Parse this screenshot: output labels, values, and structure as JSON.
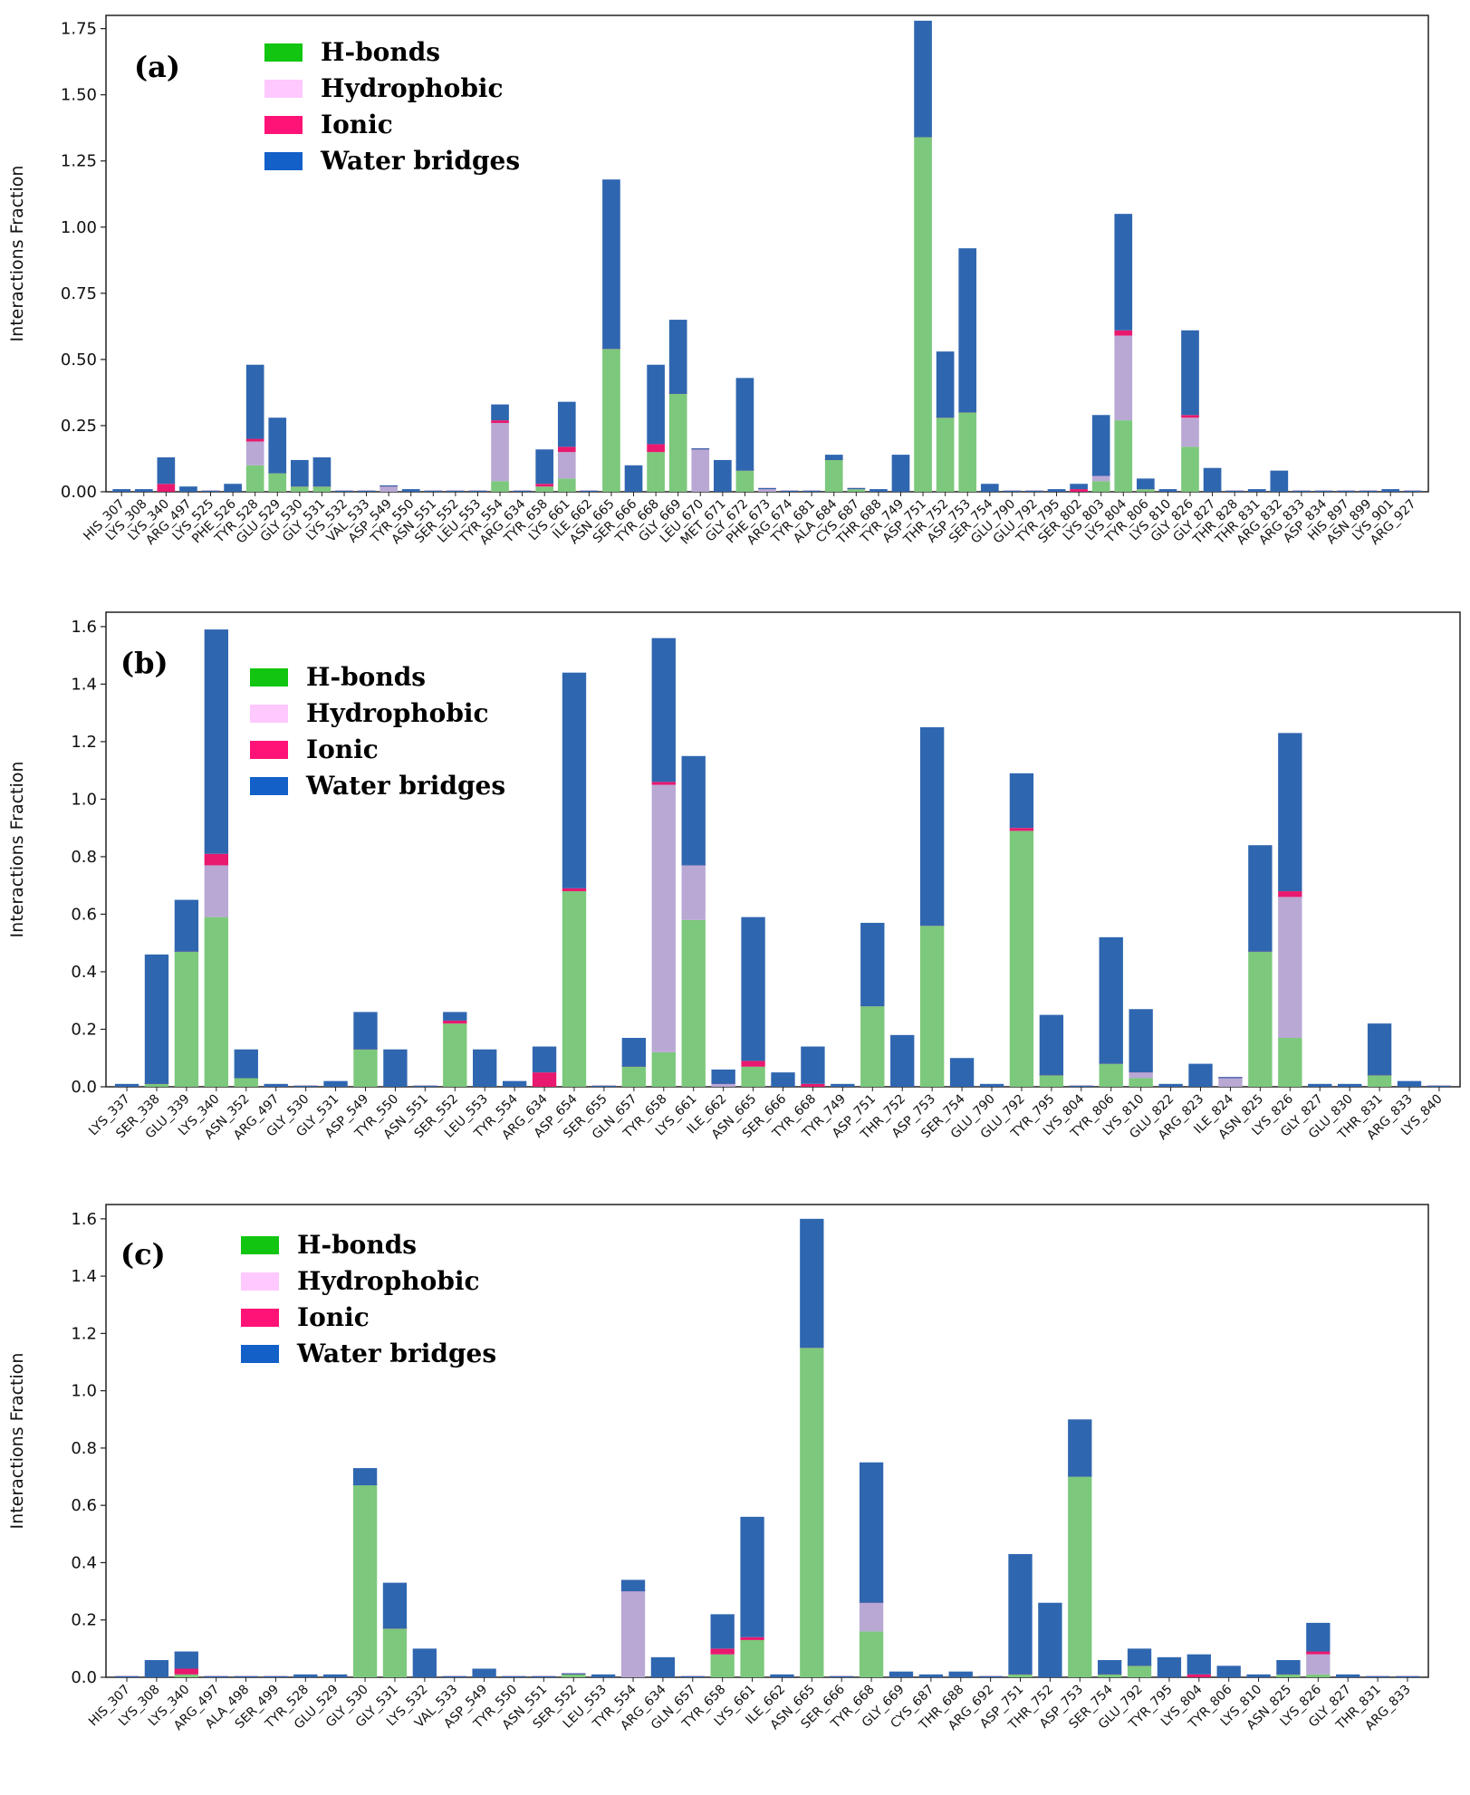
{
  "colors": {
    "hbonds": "#7cc87c",
    "hydrophobic": "#b9a8d4",
    "ionic": "#e8196e",
    "water": "#2f66b0",
    "legend_hbonds": "#11c511",
    "legend_hydrophobic": "#ffc8ff",
    "legend_ionic": "#ff1377",
    "legend_water": "#1260c8"
  },
  "chart_data": [
    {
      "type": "bar",
      "stacked": true,
      "panel_label": "(a)",
      "ylabel": "Interactions Fraction",
      "ylim": [
        0,
        1.8
      ],
      "yticks": [
        "0.00",
        "0.25",
        "0.50",
        "0.75",
        "1.00",
        "1.25",
        "1.50",
        "1.75"
      ],
      "ytick_values": [
        0,
        0.25,
        0.5,
        0.75,
        1.0,
        1.25,
        1.5,
        1.75
      ],
      "legend": [
        "H-bonds",
        "Hydrophobic",
        "Ionic",
        "Water bridges"
      ],
      "legend_position": "top-left",
      "categories": [
        "HIS_307",
        "LYS_308",
        "LYS_340",
        "ARG_497",
        "LYS_525",
        "PHE_526",
        "TYR_528",
        "GLU_529",
        "GLY_530",
        "GLY_531",
        "LYS_532",
        "VAL_533",
        "ASP_549",
        "TYR_550",
        "ASN_551",
        "SER_552",
        "LEU_553",
        "TYR_554",
        "ARG_634",
        "TYR_658",
        "LYS_661",
        "ILE_662",
        "ASN_665",
        "SER_666",
        "TYR_668",
        "GLY_669",
        "LEU_670",
        "MET_671",
        "GLY_672",
        "PHE_673",
        "ARG_674",
        "TYR_681",
        "ALA_684",
        "CYS_687",
        "THR_688",
        "TYR_749",
        "ASP_751",
        "THR_752",
        "ASP_753",
        "SER_754",
        "GLU_790",
        "GLU_792",
        "TYR_795",
        "SER_802",
        "LYS_803",
        "LYS_804",
        "TYR_806",
        "LYS_810",
        "GLY_826",
        "GLY_827",
        "THR_828",
        "THR_831",
        "ARG_832",
        "ARG_833",
        "ASP_834",
        "HIS_897",
        "ASN_899",
        "LYS_901",
        "ARG_927"
      ],
      "series": [
        {
          "name": "H-bonds",
          "values": [
            0,
            0,
            0,
            0,
            0,
            0,
            0.1,
            0.07,
            0.02,
            0.02,
            0,
            0,
            0,
            0,
            0,
            0,
            0,
            0.04,
            0,
            0.02,
            0.05,
            0,
            0.54,
            0,
            0.15,
            0.37,
            0,
            0,
            0.08,
            0,
            0,
            0,
            0.12,
            0.01,
            0,
            0,
            1.34,
            0.28,
            0.3,
            0,
            0,
            0,
            0,
            0,
            0.04,
            0.27,
            0.01,
            0,
            0.17,
            0,
            0,
            0,
            0,
            0,
            0,
            0,
            0,
            0,
            0
          ]
        },
        {
          "name": "Hydrophobic",
          "values": [
            0,
            0,
            0,
            0,
            0,
            0,
            0.09,
            0,
            0,
            0,
            0,
            0,
            0.02,
            0,
            0,
            0,
            0,
            0.22,
            0,
            0,
            0.1,
            0,
            0,
            0,
            0,
            0,
            0.16,
            0,
            0,
            0.01,
            0,
            0,
            0,
            0,
            0,
            0,
            0,
            0,
            0,
            0,
            0,
            0,
            0,
            0,
            0.02,
            0.32,
            0,
            0,
            0.11,
            0,
            0,
            0,
            0,
            0,
            0,
            0,
            0,
            0,
            0
          ]
        },
        {
          "name": "Ionic",
          "values": [
            0,
            0,
            0.03,
            0,
            0,
            0,
            0.01,
            0,
            0,
            0,
            0,
            0,
            0,
            0,
            0,
            0,
            0,
            0.01,
            0,
            0.01,
            0.02,
            0,
            0,
            0,
            0.03,
            0,
            0,
            0,
            0,
            0,
            0,
            0,
            0,
            0,
            0,
            0,
            0,
            0,
            0,
            0,
            0,
            0,
            0,
            0.01,
            0,
            0.02,
            0,
            0,
            0.01,
            0,
            0,
            0,
            0,
            0,
            0,
            0,
            0,
            0,
            0
          ]
        },
        {
          "name": "Water bridges",
          "values": [
            0.01,
            0.01,
            0.1,
            0.02,
            0,
            0.03,
            0.28,
            0.21,
            0.1,
            0.11,
            0,
            0,
            0,
            0.01,
            0,
            0,
            0,
            0.06,
            0,
            0.13,
            0.17,
            0,
            0.64,
            0.1,
            0.3,
            0.28,
            0,
            0.12,
            0.35,
            0,
            0,
            0,
            0.02,
            0,
            0.01,
            0.14,
            0.44,
            0.25,
            0.62,
            0.03,
            0,
            0,
            0.01,
            0.02,
            0.23,
            0.44,
            0.04,
            0.01,
            0.32,
            0.09,
            0,
            0.01,
            0.08,
            0,
            0,
            0,
            0,
            0.01,
            0
          ]
        }
      ]
    },
    {
      "type": "bar",
      "stacked": true,
      "panel_label": "(b)",
      "ylabel": "Interactions Fraction",
      "ylim": [
        0,
        1.65
      ],
      "yticks": [
        "0.0",
        "0.2",
        "0.4",
        "0.6",
        "0.8",
        "1.0",
        "1.2",
        "1.4",
        "1.6"
      ],
      "ytick_values": [
        0,
        0.2,
        0.4,
        0.6,
        0.8,
        1.0,
        1.2,
        1.4,
        1.6
      ],
      "legend": [
        "H-bonds",
        "Hydrophobic",
        "Ionic",
        "Water bridges"
      ],
      "legend_position": "top-left",
      "categories": [
        "LYS_337",
        "SER_338",
        "GLU_339",
        "LYS_340",
        "ASN_352",
        "ARG_497",
        "GLY_530",
        "GLY_531",
        "ASP_549",
        "TYR_550",
        "ASN_551",
        "SER_552",
        "LEU_553",
        "TYR_554",
        "ARG_634",
        "ASP_654",
        "SER_655",
        "GLN_657",
        "TYR_658",
        "LYS_661",
        "ILE_662",
        "ASN_665",
        "SER_666",
        "TYR_668",
        "TYR_749",
        "ASP_751",
        "THR_752",
        "ASP_753",
        "SER_754",
        "GLU_790",
        "GLU_792",
        "TYR_795",
        "LYS_804",
        "TYR_806",
        "LYS_810",
        "GLU_822",
        "ARG_823",
        "ILE_824",
        "ASN_825",
        "LYS_826",
        "GLY_827",
        "GLU_830",
        "THR_831",
        "ARG_833",
        "LYS_840"
      ],
      "series": [
        {
          "name": "H-bonds",
          "values": [
            0,
            0.01,
            0.47,
            0.59,
            0.03,
            0,
            0,
            0,
            0.13,
            0,
            0,
            0.22,
            0,
            0,
            0,
            0.68,
            0,
            0.07,
            0.12,
            0.58,
            0,
            0.07,
            0,
            0,
            0,
            0.28,
            0,
            0.56,
            0,
            0,
            0.89,
            0.04,
            0,
            0.08,
            0.03,
            0,
            0,
            0,
            0.47,
            0.17,
            0,
            0,
            0.04,
            0,
            0
          ]
        },
        {
          "name": "Hydrophobic",
          "values": [
            0,
            0,
            0,
            0.18,
            0,
            0,
            0,
            0,
            0,
            0,
            0,
            0,
            0,
            0,
            0,
            0,
            0,
            0,
            0.93,
            0.19,
            0.01,
            0,
            0,
            0,
            0,
            0,
            0,
            0,
            0,
            0,
            0,
            0,
            0,
            0,
            0.02,
            0,
            0,
            0.03,
            0,
            0.49,
            0,
            0,
            0,
            0,
            0
          ]
        },
        {
          "name": "Ionic",
          "values": [
            0,
            0,
            0,
            0.04,
            0,
            0,
            0,
            0,
            0,
            0,
            0,
            0.01,
            0,
            0,
            0.05,
            0.01,
            0,
            0,
            0.01,
            0,
            0,
            0.02,
            0,
            0.01,
            0,
            0,
            0,
            0,
            0,
            0,
            0.01,
            0,
            0,
            0,
            0,
            0,
            0,
            0,
            0,
            0.02,
            0,
            0,
            0,
            0,
            0
          ]
        },
        {
          "name": "Water bridges",
          "values": [
            0.01,
            0.45,
            0.18,
            0.78,
            0.1,
            0.01,
            0,
            0.02,
            0.13,
            0.13,
            0,
            0.03,
            0.13,
            0.02,
            0.09,
            0.75,
            0,
            0.1,
            0.5,
            0.38,
            0.05,
            0.5,
            0.05,
            0.13,
            0.01,
            0.29,
            0.18,
            0.69,
            0.1,
            0.01,
            0.19,
            0.21,
            0,
            0.44,
            0.22,
            0.01,
            0.08,
            0,
            0.37,
            0.55,
            0.01,
            0.01,
            0.18,
            0.02,
            0
          ]
        }
      ]
    },
    {
      "type": "bar",
      "stacked": true,
      "panel_label": "(c)",
      "ylabel": "Interactions Fraction",
      "ylim": [
        0,
        1.65
      ],
      "yticks": [
        "0.0",
        "0.2",
        "0.4",
        "0.6",
        "0.8",
        "1.0",
        "1.2",
        "1.4",
        "1.6"
      ],
      "ytick_values": [
        0,
        0.2,
        0.4,
        0.6,
        0.8,
        1.0,
        1.2,
        1.4,
        1.6
      ],
      "legend": [
        "H-bonds",
        "Hydrophobic",
        "Ionic",
        "Water bridges"
      ],
      "legend_position": "top-left",
      "categories": [
        "HIS_307",
        "LYS_308",
        "LYS_340",
        "ARG_497",
        "ALA_498",
        "SER_499",
        "TYR_528",
        "GLU_529",
        "GLY_530",
        "GLY_531",
        "LYS_532",
        "VAL_533",
        "ASP_549",
        "TYR_550",
        "ASN_551",
        "SER_552",
        "LEU_553",
        "TYR_554",
        "ARG_634",
        "GLN_657",
        "TYR_658",
        "LYS_661",
        "ILE_662",
        "ASN_665",
        "SER_666",
        "TYR_668",
        "GLY_669",
        "CYS_687",
        "THR_688",
        "ARG_692",
        "ASP_751",
        "THR_752",
        "ASP_753",
        "SER_754",
        "GLU_792",
        "TYR_795",
        "LYS_804",
        "TYR_806",
        "LYS_810",
        "ASN_825",
        "LYS_826",
        "GLY_827",
        "THR_831",
        "ARG_833"
      ],
      "series": [
        {
          "name": "H-bonds",
          "values": [
            0,
            0,
            0.01,
            0,
            0,
            0,
            0,
            0,
            0.67,
            0.17,
            0,
            0,
            0,
            0,
            0,
            0.01,
            0,
            0,
            0,
            0,
            0.08,
            0.13,
            0,
            1.15,
            0,
            0.16,
            0,
            0,
            0,
            0,
            0.01,
            0,
            0.7,
            0.01,
            0.04,
            0,
            0,
            0,
            0,
            0.01,
            0.01,
            0,
            0,
            0
          ]
        },
        {
          "name": "Hydrophobic",
          "values": [
            0,
            0,
            0,
            0,
            0,
            0,
            0,
            0,
            0,
            0,
            0,
            0,
            0,
            0,
            0,
            0,
            0,
            0.3,
            0,
            0,
            0,
            0,
            0,
            0,
            0,
            0.1,
            0,
            0,
            0,
            0,
            0,
            0,
            0,
            0,
            0,
            0,
            0,
            0,
            0,
            0,
            0.07,
            0,
            0,
            0
          ]
        },
        {
          "name": "Ionic",
          "values": [
            0,
            0,
            0.02,
            0,
            0,
            0,
            0,
            0,
            0,
            0,
            0,
            0,
            0,
            0,
            0,
            0,
            0,
            0,
            0,
            0,
            0.02,
            0.01,
            0,
            0,
            0,
            0,
            0,
            0,
            0,
            0,
            0,
            0,
            0,
            0,
            0,
            0,
            0.01,
            0,
            0,
            0,
            0.01,
            0,
            0,
            0
          ]
        },
        {
          "name": "Water bridges",
          "values": [
            0,
            0.06,
            0.06,
            0,
            0,
            0,
            0.01,
            0.01,
            0.06,
            0.16,
            0.1,
            0,
            0.03,
            0,
            0,
            0,
            0.01,
            0.04,
            0.07,
            0,
            0.12,
            0.42,
            0.01,
            0.45,
            0,
            0.49,
            0.02,
            0.01,
            0.02,
            0,
            0.42,
            0.26,
            0.2,
            0.05,
            0.06,
            0.07,
            0.07,
            0.04,
            0.01,
            0.05,
            0.1,
            0.01,
            0,
            0
          ]
        }
      ]
    }
  ]
}
